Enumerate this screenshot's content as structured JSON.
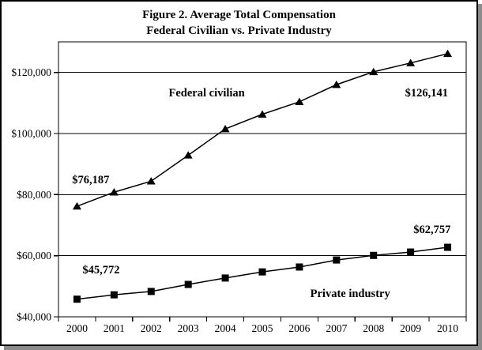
{
  "title": {
    "line1": "Figure 2. Average Total Compensation",
    "line2": "Federal Civilian vs. Private Industry"
  },
  "chart_data": {
    "type": "line",
    "title": "Figure 2. Average Total Compensation Federal Civilian vs. Private Industry",
    "xlabel": "",
    "ylabel": "",
    "x_categories": [
      "2000",
      "2001",
      "2002",
      "2003",
      "2004",
      "2005",
      "2006",
      "2007",
      "2008",
      "2009",
      "2010"
    ],
    "series": [
      {
        "name": "Federal civilian",
        "marker": "triangle",
        "color": "#000000",
        "values": [
          76187,
          80800,
          84400,
          92900,
          101500,
          106300,
          110400,
          116000,
          120200,
          123100,
          126141
        ]
      },
      {
        "name": "Private industry",
        "marker": "square",
        "color": "#000000",
        "values": [
          45772,
          47200,
          48300,
          50600,
          52700,
          54700,
          56300,
          58600,
          60100,
          61200,
          62757
        ]
      }
    ],
    "ylim": [
      40000,
      130000
    ],
    "ytick_step": 20000,
    "yticks": [
      {
        "value": 40000,
        "label": "$40,000"
      },
      {
        "value": 60000,
        "label": "$60,000"
      },
      {
        "value": 80000,
        "label": "$80,000"
      },
      {
        "value": 100000,
        "label": "$100,000"
      },
      {
        "value": 120000,
        "label": "$120,000"
      }
    ],
    "grid_values": [
      60000,
      80000,
      100000,
      120000
    ],
    "grid": true,
    "legend_position": "none",
    "annotations": [
      {
        "text": "Federal civilian",
        "xi": 3.5,
        "v": 113400
      },
      {
        "text": "$76,187",
        "xi": 0.37,
        "v": 85000
      },
      {
        "text": "$126,141",
        "xi": 9.43,
        "v": 113400
      },
      {
        "text": "$45,772",
        "xi": 0.65,
        "v": 55500
      },
      {
        "text": "$62,757",
        "xi": 9.58,
        "v": 68700
      },
      {
        "text": "Private industry",
        "xi": 7.37,
        "v": 47760
      }
    ]
  }
}
